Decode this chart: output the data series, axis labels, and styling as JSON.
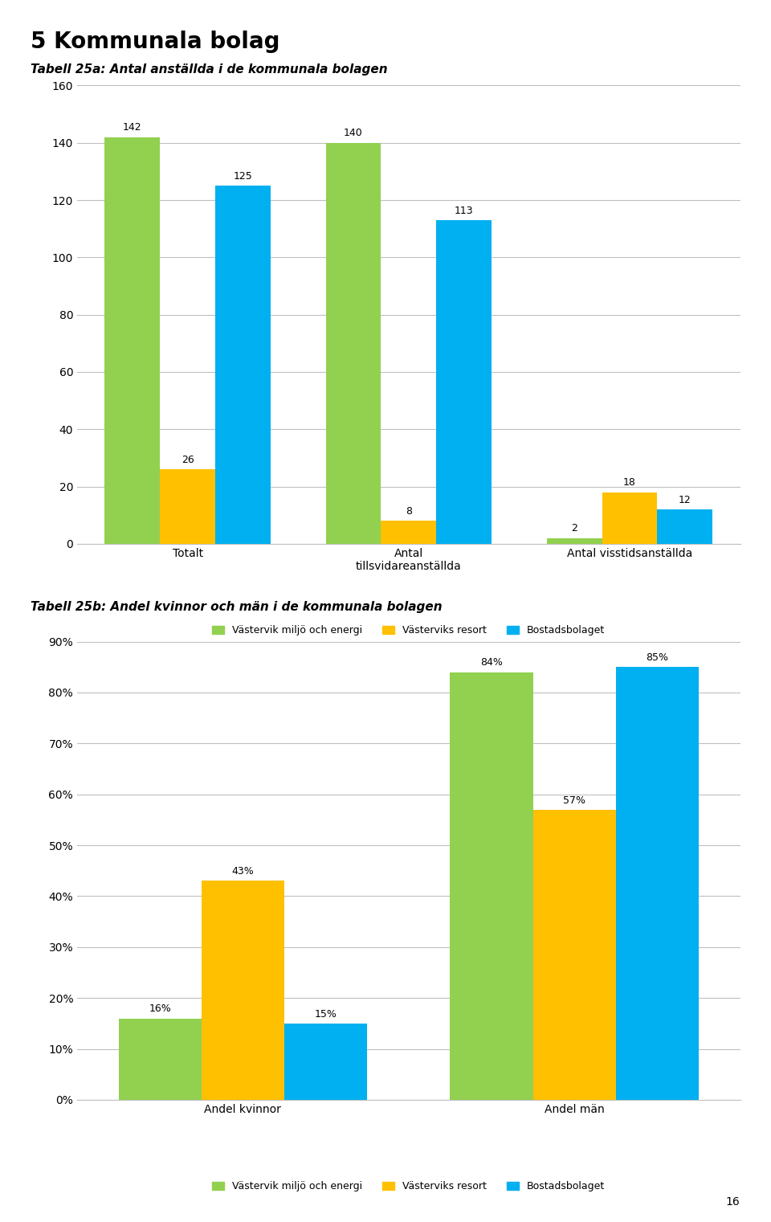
{
  "page_title": "5 Kommunala bolag",
  "chart1_title": "Tabell 25a: Antal anställda i de kommunala bolagen",
  "chart1_categories": [
    "Totalt",
    "Antal\ntillsvidareanställda",
    "Antal visstidsanställda"
  ],
  "chart1_series": {
    "Västervik miljö och energi": [
      142,
      140,
      2
    ],
    "Västerviks resort": [
      26,
      8,
      18
    ],
    "Bostadsbolaget": [
      125,
      113,
      12
    ]
  },
  "chart1_ylim": [
    0,
    160
  ],
  "chart1_yticks": [
    0,
    20,
    40,
    60,
    80,
    100,
    120,
    140,
    160
  ],
  "chart2_title": "Tabell 25b: Andel kvinnor och män i de kommunala bolagen",
  "chart2_categories": [
    "Andel kvinnor",
    "Andel män"
  ],
  "chart2_series": {
    "Västervik miljö och energi": [
      0.16,
      0.84
    ],
    "Västerviks resort": [
      0.43,
      0.57
    ],
    "Bostadsbolaget": [
      0.15,
      0.85
    ]
  },
  "chart2_ylim": [
    0,
    0.9
  ],
  "chart2_yticks": [
    0,
    0.1,
    0.2,
    0.3,
    0.4,
    0.5,
    0.6,
    0.7,
    0.8,
    0.9
  ],
  "chart2_ytick_labels": [
    "0%",
    "10%",
    "20%",
    "30%",
    "40%",
    "50%",
    "60%",
    "70%",
    "80%",
    "90%"
  ],
  "color_green": "#92D050",
  "color_orange": "#FFC000",
  "color_blue": "#00B0F0",
  "legend_labels": [
    "Västervik miljö och energi",
    "Västerviks resort",
    "Bostadsbolaget"
  ],
  "grid_color": "#BFBFBF",
  "background_color": "#FFFFFF",
  "page_number": "16"
}
